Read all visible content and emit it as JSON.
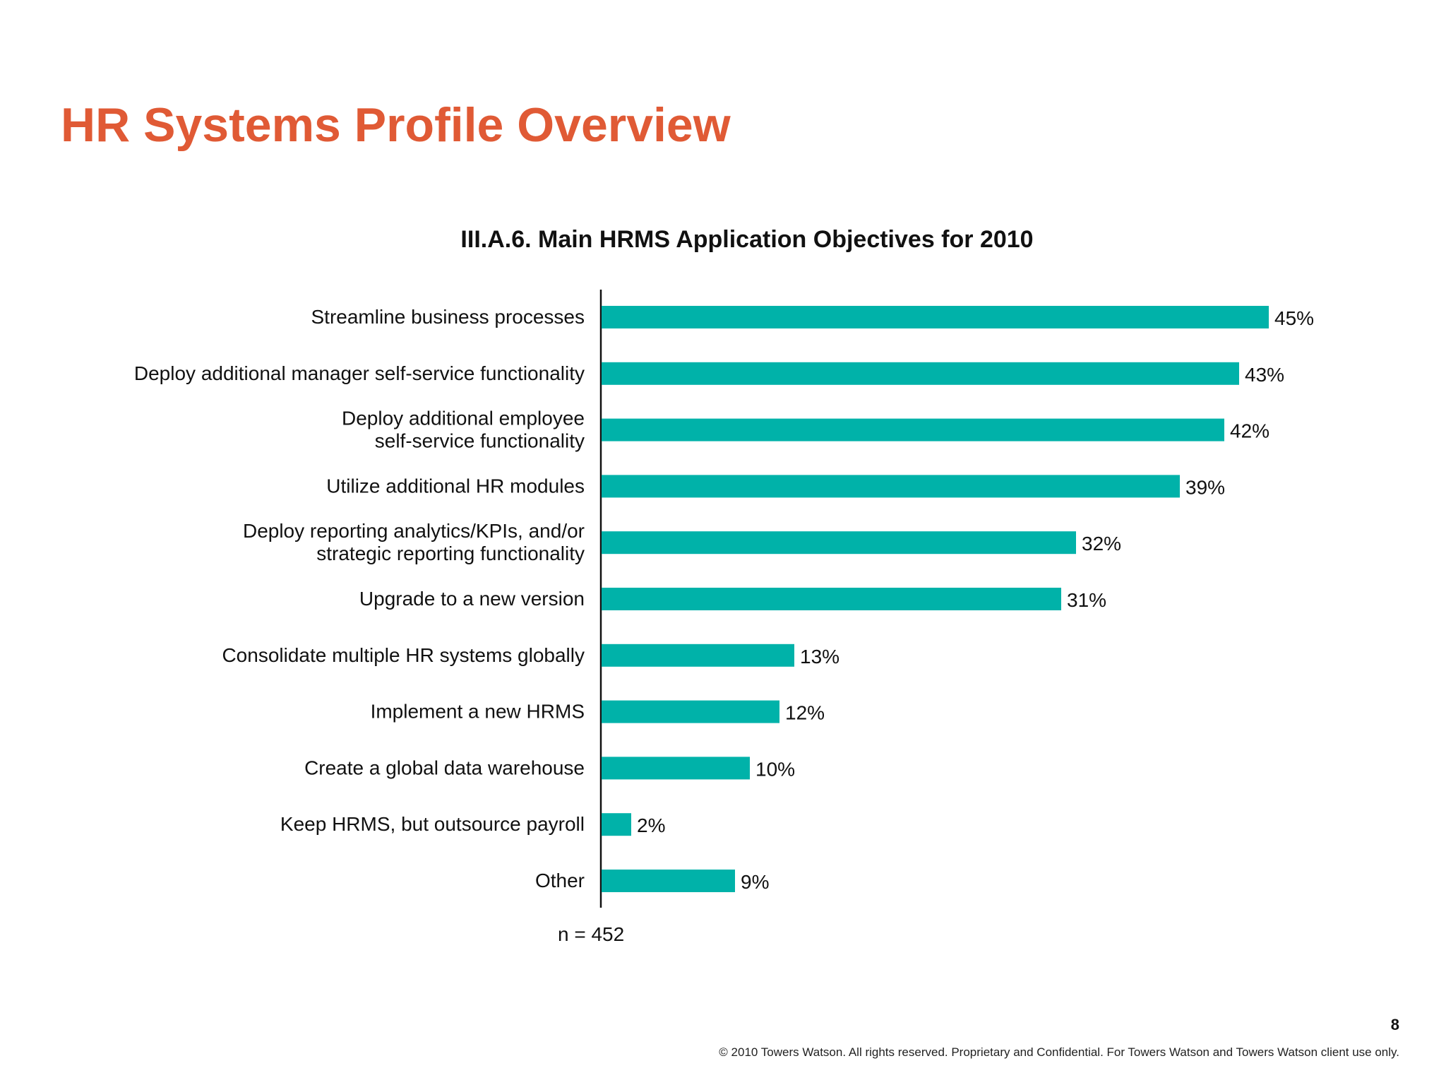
{
  "slide": {
    "title": "HR Systems Profile Overview",
    "page_number": "8",
    "footer": "© 2010 Towers Watson. All rights reserved. Proprietary and Confidential. For Towers Watson and Towers Watson client use only."
  },
  "colors": {
    "title": "#e05a35",
    "bar": "#00b2a9",
    "text": "#111111"
  },
  "chart_data": {
    "type": "bar",
    "orientation": "horizontal",
    "title": "III.A.6. Main HRMS Application Objectives for 2010",
    "categories": [
      [
        "Streamline business processes"
      ],
      [
        "Deploy additional manager self-service functionality"
      ],
      [
        "Deploy additional employee",
        "self-service functionality"
      ],
      [
        "Utilize additional HR modules"
      ],
      [
        "Deploy reporting analytics/KPIs, and/or",
        "strategic reporting functionality"
      ],
      [
        "Upgrade to a new version"
      ],
      [
        "Consolidate multiple HR systems globally"
      ],
      [
        "Implement a new HRMS"
      ],
      [
        "Create a global data warehouse"
      ],
      [
        "Keep HRMS, but outsource payroll"
      ],
      [
        "Other"
      ]
    ],
    "values": [
      45,
      43,
      42,
      39,
      32,
      31,
      13,
      12,
      10,
      2,
      9
    ],
    "value_labels": [
      "45%",
      "43%",
      "42%",
      "39%",
      "32%",
      "31%",
      "13%",
      "12%",
      "10%",
      "2%",
      "9%"
    ],
    "unit": "%",
    "xlim": [
      0,
      45
    ],
    "grid": false,
    "legend": "none",
    "note": "n = 452"
  }
}
